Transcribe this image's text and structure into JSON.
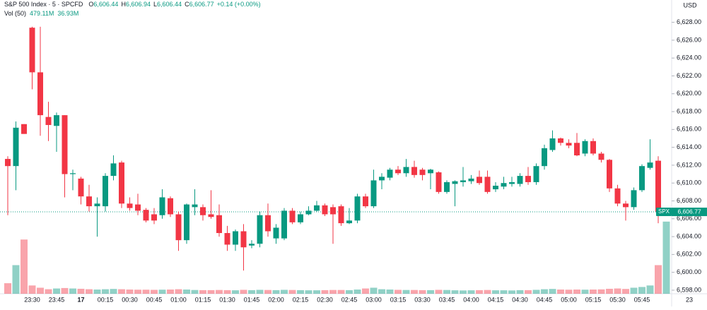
{
  "chart_data": {
    "type": "candlestick",
    "title": "S&P 500 Index · 5 · SPCFD",
    "header_values": [
      {
        "key": "O",
        "value": "6,606.44"
      },
      {
        "key": "H",
        "value": "6,606.94"
      },
      {
        "key": "L",
        "value": "6,606.44"
      },
      {
        "key": "C",
        "value": "6,606.77"
      }
    ],
    "change": "+0.14 (+0.00%)",
    "volume_title": "Vol (50)",
    "volume_values": [
      "479.11M",
      "36.93M"
    ],
    "currency": "USD",
    "symbol": "SPX",
    "last_price": {
      "value": 6606.77,
      "label": "6,606.77"
    },
    "up_color": "#089981",
    "down_color": "#f23645",
    "ylim": [
      6597.6,
      6630.5
    ],
    "yticks": [
      {
        "value": 6598,
        "label": "6,598.00"
      },
      {
        "value": 6600,
        "label": "6,600.00"
      },
      {
        "value": 6602,
        "label": "6,602.00"
      },
      {
        "value": 6604,
        "label": "6,604.00"
      },
      {
        "value": 6606,
        "label": "6,606.00"
      },
      {
        "value": 6608,
        "label": "6,608.00"
      },
      {
        "value": 6610,
        "label": "6,610.00"
      },
      {
        "value": 6612,
        "label": "6,612.00"
      },
      {
        "value": 6614,
        "label": "6,614.00"
      },
      {
        "value": 6616,
        "label": "6,616.00"
      },
      {
        "value": 6618,
        "label": "6,618.00"
      },
      {
        "value": 6620,
        "label": "6,620.00"
      },
      {
        "value": 6622,
        "label": "6,622.00"
      },
      {
        "value": 6624,
        "label": "6,624.00"
      },
      {
        "value": 6626,
        "label": "6,626.00"
      },
      {
        "value": 6628,
        "label": "6,628.00"
      }
    ],
    "volume_ylim": [
      0,
      1800
    ],
    "x_end_label": "23",
    "categories": [
      null,
      null,
      null,
      "23:30",
      null,
      null,
      "23:45",
      null,
      null,
      "17",
      null,
      null,
      "00:15",
      null,
      null,
      "00:30",
      null,
      null,
      "00:45",
      null,
      null,
      "01:00",
      null,
      null,
      "01:15",
      null,
      null,
      "01:30",
      null,
      null,
      "01:45",
      null,
      null,
      "02:00",
      null,
      null,
      "02:15",
      null,
      null,
      "02:30",
      null,
      null,
      "02:45",
      null,
      null,
      "03:00",
      null,
      null,
      "03:15",
      null,
      null,
      "03:30",
      null,
      null,
      "03:45",
      null,
      null,
      "04:00",
      null,
      null,
      "04:15",
      null,
      null,
      "04:30",
      null,
      null,
      "04:45",
      null,
      null,
      "05:00",
      null,
      null,
      "05:15",
      null,
      null,
      "05:30",
      null,
      null,
      "05:45",
      null,
      null,
      null
    ],
    "open": [
      6612.7,
      6611.9,
      6616.6,
      6627.4,
      6622.4,
      6617.4,
      6616.4,
      6617.6,
      6611.0,
      6610.5,
      6608.5,
      6607.4,
      6607.4,
      6610.8,
      6612.3,
      6607.7,
      6607.6,
      6607.0,
      6606.5,
      6606.4,
      6608.3,
      6606.5,
      6603.6,
      6607.3,
      6607.3,
      6606.5,
      6606.4,
      6604.4,
      6603.1,
      6604.6,
      6603.0,
      6603.2,
      6606.4,
      6603.8,
      6603.8,
      6606.9,
      6605.6,
      6606.5,
      6606.9,
      6607.5,
      6607.3,
      6607.4,
      6605.5,
      6605.8,
      6608.5,
      6607.4,
      6610.3,
      6610.6,
      6611.5,
      6611.1,
      6611.8,
      6611.5,
      6611.1,
      6611.2,
      6609.0,
      6609.9,
      6610.1,
      6610.2,
      6610.7,
      6610.7,
      6609.3,
      6609.6,
      6609.9,
      6609.9,
      6610.8,
      6610.1,
      6611.9,
      6613.7,
      6615.0,
      6614.5,
      6614.5,
      6613.3,
      6614.7,
      6613.3,
      6612.6,
      6609.4,
      6607.7,
      6607.3,
      6609.2,
      6611.7,
      6612.5,
      6606.44
    ],
    "high": [
      6613.0,
      6616.9,
      6616.6,
      6627.5,
      6627.5,
      6619.1,
      6617.9,
      6617.6,
      6611.5,
      6610.7,
      6609.8,
      6608.4,
      6611.1,
      6613.1,
      6612.5,
      6608.4,
      6608.8,
      6607.2,
      6607.2,
      6609.3,
      6608.5,
      6606.8,
      6607.7,
      6609.3,
      6607.6,
      6609.2,
      6607.6,
      6605.2,
      6604.8,
      6605.4,
      6603.6,
      6606.8,
      6607.7,
      6605.4,
      6607.2,
      6607.2,
      6606.8,
      6607.4,
      6608.0,
      6607.7,
      6607.6,
      6607.6,
      6607.2,
      6608.8,
      6608.8,
      6611.5,
      6611.1,
      6611.7,
      6611.9,
      6612.7,
      6612.5,
      6611.7,
      6611.6,
      6611.3,
      6610.3,
      6610.3,
      6611.8,
      6610.9,
      6611.4,
      6611.4,
      6610.1,
      6610.7,
      6610.7,
      6611.1,
      6611.8,
      6612.2,
      6614.3,
      6615.9,
      6615.1,
      6614.9,
      6615.6,
      6614.9,
      6615.0,
      6613.5,
      6612.7,
      6609.8,
      6608.0,
      6609.5,
      6612.1,
      6614.9,
      6613.0,
      6606.94
    ],
    "low": [
      6606.4,
      6609.2,
      6615.5,
      6620.5,
      6615.3,
      6614.7,
      6613.5,
      6608.4,
      6609.2,
      6607.6,
      6606.8,
      6604.0,
      6606.8,
      6610.3,
      6607.2,
      6606.9,
      6606.4,
      6605.6,
      6605.4,
      6606.0,
      6606.2,
      6602.4,
      6603.2,
      6606.4,
      6605.8,
      6606.0,
      6604.0,
      6602.4,
      6602.4,
      6600.2,
      6602.7,
      6602.8,
      6604.0,
      6603.2,
      6603.6,
      6605.4,
      6605.4,
      6606.4,
      6606.8,
      6606.3,
      6603.2,
      6605.2,
      6605.4,
      6605.5,
      6607.2,
      6607.2,
      6609.3,
      6610.3,
      6610.9,
      6610.7,
      6610.6,
      6610.3,
      6609.3,
      6608.8,
      6608.8,
      6607.4,
      6609.6,
      6609.9,
      6609.8,
      6608.8,
      6609.0,
      6609.3,
      6609.6,
      6609.6,
      6609.8,
      6609.8,
      6611.5,
      6613.5,
      6614.2,
      6613.9,
      6613.0,
      6613.0,
      6613.1,
      6612.3,
      6609.0,
      6607.4,
      6605.8,
      6607.0,
      6609.0,
      6611.5,
      6605.5,
      6606.44
    ],
    "close": [
      6611.9,
      6616.2,
      6615.5,
      6622.4,
      6617.6,
      6616.5,
      6617.6,
      6611.0,
      6611.1,
      6608.5,
      6607.4,
      6607.7,
      6610.8,
      6612.2,
      6607.7,
      6607.2,
      6606.9,
      6605.8,
      6605.8,
      6608.4,
      6606.5,
      6603.6,
      6607.6,
      6607.6,
      6606.4,
      6606.2,
      6604.4,
      6603.1,
      6604.6,
      6602.8,
      6603.2,
      6606.4,
      6604.6,
      6605.0,
      6606.9,
      6605.6,
      6606.5,
      6606.9,
      6607.5,
      6606.5,
      6606.5,
      6605.5,
      6605.8,
      6608.5,
      6607.4,
      6610.3,
      6610.7,
      6611.5,
      6611.1,
      6611.8,
      6610.9,
      6610.9,
      6611.5,
      6609.0,
      6610.1,
      6610.2,
      6610.3,
      6610.5,
      6610.0,
      6609.0,
      6609.7,
      6610.0,
      6610.1,
      6610.8,
      6610.1,
      6611.9,
      6613.9,
      6615.0,
      6614.5,
      6614.2,
      6613.1,
      6614.7,
      6613.3,
      6612.6,
      6609.4,
      6607.7,
      6607.3,
      6609.2,
      6611.9,
      6612.3,
      6606.8,
      6606.77
    ],
    "volume": [
      70,
      190,
      360,
      55,
      40,
      30,
      35,
      38,
      35,
      33,
      30,
      28,
      30,
      32,
      30,
      28,
      27,
      27,
      26,
      27,
      28,
      30,
      28,
      25,
      24,
      24,
      25,
      24,
      23,
      26,
      24,
      26,
      25,
      24,
      26,
      25,
      24,
      23,
      23,
      24,
      25,
      25,
      24,
      28,
      35,
      40,
      30,
      28,
      26,
      25,
      25,
      24,
      24,
      26,
      25,
      23,
      22,
      23,
      24,
      25,
      23,
      23,
      22,
      24,
      24,
      26,
      30,
      32,
      28,
      27,
      28,
      27,
      28,
      29,
      33,
      35,
      32,
      40,
      45,
      55,
      190,
      479.11
    ]
  }
}
